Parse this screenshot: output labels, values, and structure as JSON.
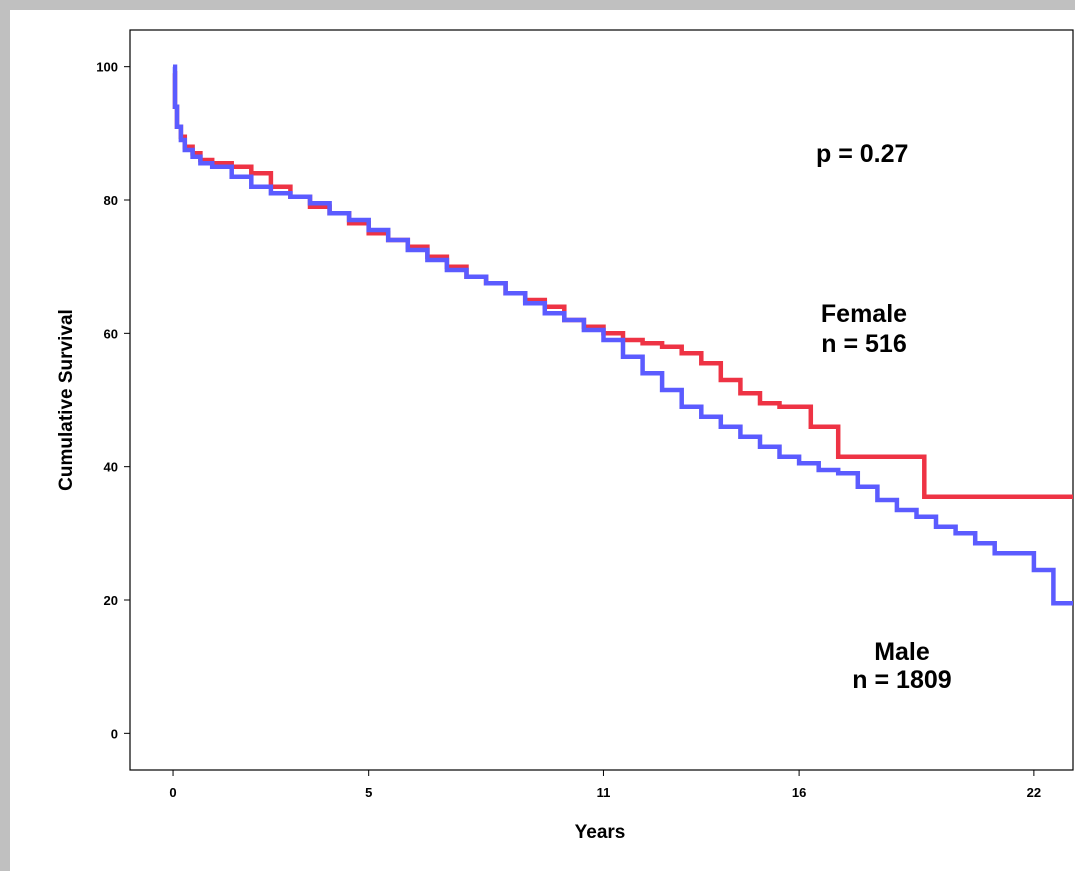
{
  "chart_data": {
    "type": "line",
    "title": "",
    "xlabel": "Years",
    "ylabel": "Cumulative Survival",
    "xlim": [
      -1.1,
      23
    ],
    "ylim": [
      -5.5,
      105.5
    ],
    "x_ticks": [
      0,
      5,
      11,
      16,
      22
    ],
    "x_tick_labels": [
      "0",
      "5",
      "11",
      "16",
      "22"
    ],
    "y_ticks": [
      0,
      20,
      40,
      60,
      80,
      100
    ],
    "y_tick_labels": [
      "0",
      "20",
      "40",
      "60",
      "80",
      "100"
    ],
    "grid": false,
    "legend": "none",
    "annotations": {
      "p_value": "p = 0.27",
      "female_label": "Female",
      "female_n": "n = 516",
      "male_label": "Male",
      "male_n": "n = 1809"
    },
    "series": [
      {
        "name": "Female",
        "color": "#ee3344",
        "step": true,
        "x": [
          0,
          0.05,
          0.1,
          0.2,
          0.3,
          0.5,
          0.7,
          1.0,
          1.5,
          2.0,
          2.5,
          3.0,
          3.5,
          4.0,
          4.5,
          5.0,
          5.5,
          6.0,
          6.5,
          7.0,
          7.5,
          8.0,
          8.5,
          9.0,
          9.5,
          10.0,
          10.5,
          11.0,
          11.5,
          12.0,
          12.5,
          13.0,
          13.5,
          14.0,
          14.5,
          15.0,
          15.5,
          15.9,
          16.3,
          16.8,
          17.0,
          17.5,
          18.0,
          18.5,
          19.2,
          20.0,
          21.0,
          22.0,
          23.0
        ],
        "y": [
          99,
          94,
          91,
          89.5,
          88,
          87,
          86,
          85.5,
          85,
          84,
          82,
          80.5,
          79,
          78,
          76.5,
          75,
          74,
          73,
          71.5,
          70,
          68.5,
          67.5,
          66,
          65,
          64,
          62,
          61,
          60,
          59,
          58.5,
          58,
          57,
          55.5,
          53,
          51,
          49.5,
          49,
          49,
          46,
          46,
          41.5,
          41.5,
          41.5,
          41.5,
          35.5,
          35.5,
          35.5,
          35.5,
          35.5
        ]
      },
      {
        "name": "Male",
        "color": "#5b5bff",
        "step": true,
        "x": [
          0,
          0.05,
          0.1,
          0.2,
          0.3,
          0.5,
          0.7,
          1.0,
          1.5,
          2.0,
          2.5,
          3.0,
          3.5,
          4.0,
          4.5,
          5.0,
          5.5,
          6.0,
          6.5,
          7.0,
          7.5,
          8.0,
          8.5,
          9.0,
          9.5,
          10.0,
          10.5,
          11.0,
          11.5,
          12.0,
          12.5,
          13.0,
          13.5,
          14.0,
          14.5,
          15.0,
          15.5,
          16.0,
          16.5,
          17.0,
          17.5,
          18.0,
          18.5,
          19.0,
          19.5,
          20.0,
          20.5,
          21.0,
          21.5,
          22.0,
          22.5,
          23.0
        ],
        "y": [
          100,
          94,
          91,
          89,
          87.5,
          86.5,
          85.5,
          85,
          83.5,
          82,
          81,
          80.5,
          79.5,
          78,
          77,
          75.5,
          74,
          72.5,
          71,
          69.5,
          68.5,
          67.5,
          66,
          64.5,
          63,
          62,
          60.5,
          59,
          56.5,
          54,
          51.5,
          49,
          47.5,
          46,
          44.5,
          43,
          41.5,
          40.5,
          39.5,
          39,
          37,
          35,
          33.5,
          32.5,
          31,
          30,
          28.5,
          27,
          27,
          24.5,
          19.5,
          19.5
        ]
      }
    ]
  }
}
